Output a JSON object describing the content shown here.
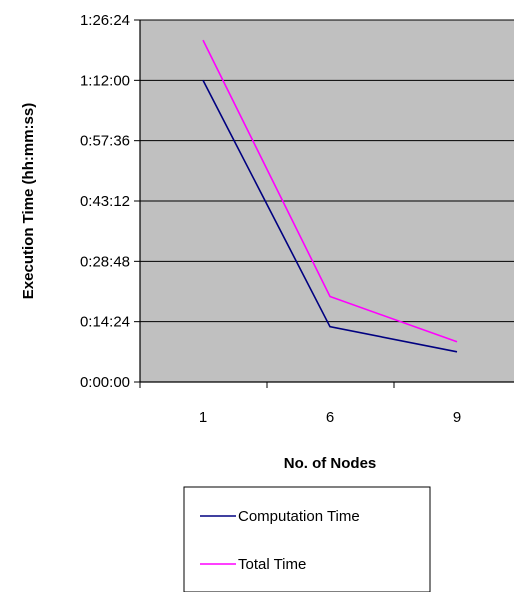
{
  "chart_data": {
    "type": "line",
    "title": "",
    "xlabel": "No. of Nodes",
    "ylabel": "Execution Time (hh:mm:ss)",
    "categories": [
      "1",
      "6",
      "9"
    ],
    "y_ticks": [
      "0:00:00",
      "0:14:24",
      "0:28:48",
      "0:43:12",
      "0:57:36",
      "1:12:00",
      "1:26:24"
    ],
    "y_tick_seconds": [
      0,
      864,
      1728,
      2592,
      3456,
      4320,
      5184
    ],
    "ylim_seconds": [
      0,
      5184
    ],
    "grid": true,
    "legend_position": "bottom",
    "plot_background": "#c0c0c0",
    "series": [
      {
        "name": "Computation Time",
        "color": "#000080",
        "values_seconds": [
          4320,
          792,
          432
        ]
      },
      {
        "name": "Total Time",
        "color": "#ff00ff",
        "values_seconds": [
          4896,
          1224,
          576
        ]
      }
    ]
  }
}
